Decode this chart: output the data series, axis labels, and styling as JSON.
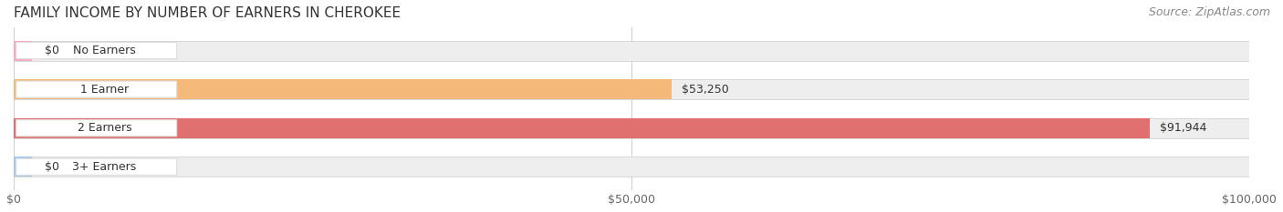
{
  "title": "FAMILY INCOME BY NUMBER OF EARNERS IN CHEROKEE",
  "source": "Source: ZipAtlas.com",
  "categories": [
    "No Earners",
    "1 Earner",
    "2 Earners",
    "3+ Earners"
  ],
  "values": [
    0,
    53250,
    91944,
    0
  ],
  "bar_colors": [
    "#f9a8c0",
    "#f5b97a",
    "#e07070",
    "#a8c8e8"
  ],
  "bar_bg_color": "#eeeeee",
  "xlim_data": 100000,
  "xticks": [
    0,
    50000,
    100000
  ],
  "xticklabels": [
    "$0",
    "$50,000",
    "$100,000"
  ],
  "value_labels": [
    "$0",
    "$53,250",
    "$91,944",
    "$0"
  ],
  "title_fontsize": 11,
  "source_fontsize": 9,
  "tick_fontsize": 9,
  "bar_label_fontsize": 9,
  "value_label_fontsize": 9,
  "figsize": [
    14.06,
    2.33
  ],
  "dpi": 100
}
